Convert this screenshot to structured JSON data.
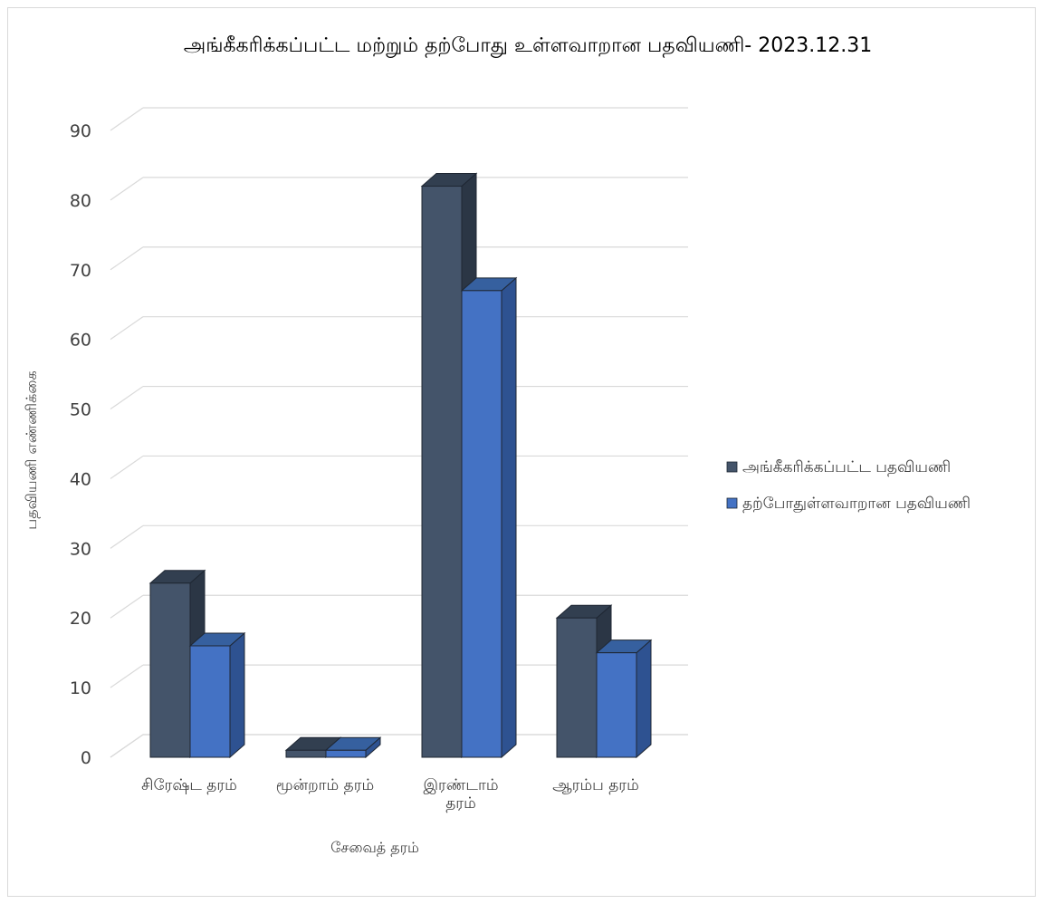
{
  "chart_data": {
    "type": "bar",
    "title": "அங்கீகரிக்கப்பட்ட மற்றும் தற்போது உள்ளவாறான பதவியணி- 2023.12.31",
    "xlabel": "சேவைத் தரம்",
    "ylabel": "பதவியணி எண்ணிக்கை",
    "ylim": [
      0,
      90
    ],
    "yticks": [
      "0",
      "10",
      "20",
      "30",
      "40",
      "50",
      "60",
      "70",
      "80",
      "90"
    ],
    "grid": true,
    "legend_position": "right",
    "categories": [
      [
        "சிரேஷ்ட தரம்"
      ],
      [
        "மூன்றாம் தரம்"
      ],
      [
        "இரண்டாம்",
        "தரம்"
      ],
      [
        "ஆரம்ப தரம்"
      ]
    ],
    "series": [
      {
        "name": "அங்கீகரிக்கப்பட்ட பதவியணி",
        "values": [
          25,
          1,
          82,
          20
        ],
        "color": "#44546a",
        "side_color": "#2b3645",
        "top_color": "#323f50"
      },
      {
        "name": "தற்போதுள்ளவாறான பதவியணி",
        "values": [
          16,
          1,
          67,
          15
        ],
        "color": "#4472c4",
        "side_color": "#2e5291",
        "top_color": "#36609f"
      }
    ]
  }
}
